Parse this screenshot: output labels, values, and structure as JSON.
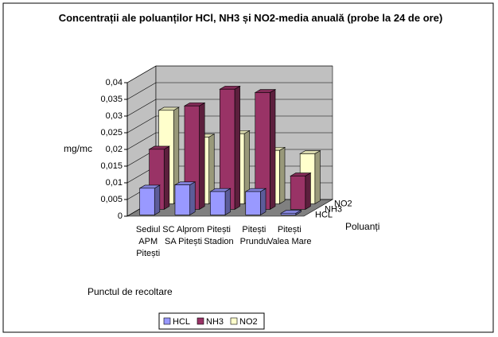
{
  "chart_data": {
    "type": "bar3d",
    "title": "Concentrații ale poluanților HCl, NH3 și NO2-media anuală (probe la 24 de ore)",
    "y_label": "mg/mc",
    "x_label": "Punctul de recoltare",
    "z_label": "Poluanți",
    "categories": [
      "Sediul APM Pitești",
      "SC Alprom SA Pitești",
      "Pitești Stadion",
      "Pitești Prundu",
      "Pitești Valea Mare"
    ],
    "series": [
      {
        "name": "HCL",
        "color": "#9999ff",
        "values": [
          0.008,
          0.009,
          0.007,
          0.007,
          0.0005
        ]
      },
      {
        "name": "NH3",
        "color": "#993366",
        "values": [
          0.018,
          0.031,
          0.036,
          0.035,
          0.01
        ]
      },
      {
        "name": "NO2",
        "color": "#ffffcc",
        "values": [
          0.028,
          0.02,
          0.021,
          0.016,
          0.015
        ]
      }
    ],
    "ylim": [
      0,
      0.04
    ],
    "yticks": [
      0,
      {
        "value": 0.005,
        "label": "0,005"
      },
      {
        "value": 0.01,
        "label": "0,01"
      },
      {
        "value": 0.015,
        "label": "0,015"
      },
      {
        "value": 0.02,
        "label": "0,02"
      },
      {
        "value": 0.025,
        "label": "0,025"
      },
      {
        "value": 0.03,
        "label": "0,03"
      },
      {
        "value": 0.035,
        "label": "0,035"
      },
      {
        "value": 0.04,
        "label": "0,04"
      }
    ],
    "grid": true,
    "legend": "bottom"
  }
}
